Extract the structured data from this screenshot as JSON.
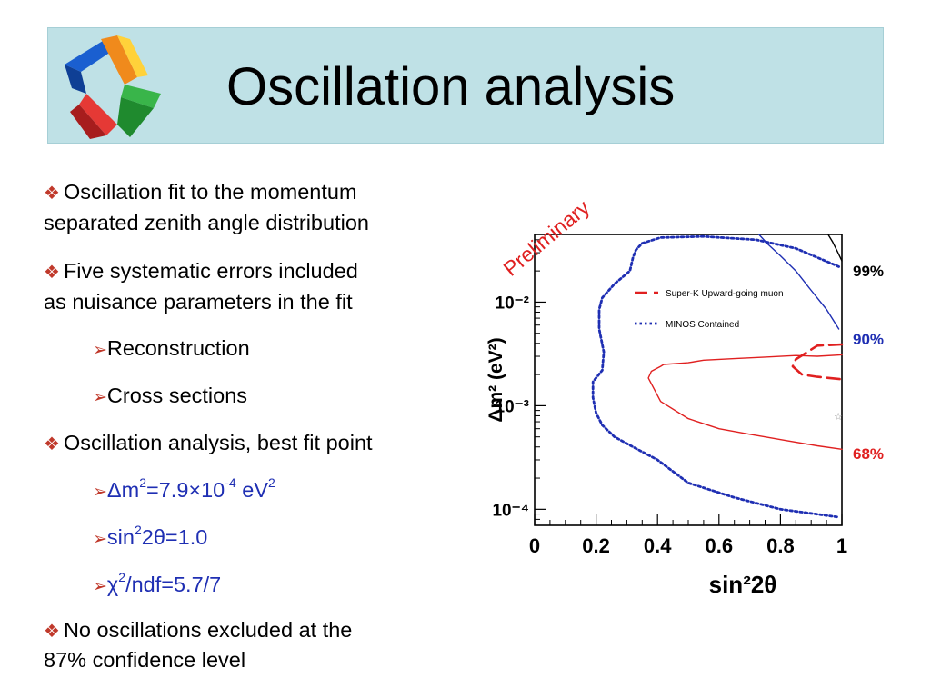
{
  "header": {
    "title": "Oscillation analysis"
  },
  "bullets": {
    "b1_line1": "Oscillation fit to the momentum",
    "b1_line2": "separated zenith angle distribution",
    "b2_line1": "Five systematic errors included",
    "b2_line2": "as nuisance parameters in the fit",
    "sub1": "Reconstruction",
    "sub2": "Cross sections",
    "b3": "Oscillation analysis, best fit point",
    "fit_dm2_prefix": "Δm",
    "fit_dm2_eq": "=7.9×10",
    "fit_dm2_exp": "-4",
    "fit_dm2_unit": " eV",
    "fit_sin_prefix": "sin",
    "fit_sin_mid": "2θ=1.0",
    "fit_chi_prefix": "χ",
    "fit_chi_rest": "/ndf=5.7/7",
    "b4_line1": "No oscillations excluded at the",
    "b4_line2": "87% confidence level"
  },
  "colors": {
    "red": "#e02020",
    "blue": "#1f2fb3",
    "bullet_marker": "#c0392b"
  },
  "chart_data": {
    "type": "line",
    "stamp": "Preliminary",
    "xlabel": "sin²2θ",
    "ylabel": "Δm² (eV²)",
    "xlim": [
      0,
      1
    ],
    "ylim": [
      7e-05,
      0.045
    ],
    "y_scale": "log",
    "x_ticks": [
      "0",
      "0.2",
      "0.4",
      "0.6",
      "0.8",
      "1"
    ],
    "y_ticks": [
      "10⁻²",
      "10⁻³",
      "10⁻⁴"
    ],
    "legend": [
      {
        "label": "Super-K Upward-going muon",
        "style": "dashed",
        "color": "#e02020"
      },
      {
        "label": "MINOS Contained",
        "style": "dotted",
        "color": "#1f2fb3"
      }
    ],
    "contour_labels": [
      {
        "text": "99%",
        "color": "#000000"
      },
      {
        "text": "90%",
        "color": "#1f2fb3"
      },
      {
        "text": "68%",
        "color": "#e02020"
      }
    ],
    "best_fit": {
      "x": 1.0,
      "y": 0.00079
    },
    "series": [
      {
        "name": "Super-K Upward-going muon",
        "style": "dashed",
        "color": "#e02020",
        "x": [
          1.0,
          0.92,
          0.85,
          0.84,
          0.87,
          0.92,
          1.0
        ],
        "y": [
          0.0039,
          0.0038,
          0.0028,
          0.0024,
          0.002,
          0.0019,
          0.0018
        ]
      },
      {
        "name": "MINOS Contained",
        "style": "dotted",
        "color": "#1f2fb3",
        "x": [
          0.99,
          0.85,
          0.72,
          0.55,
          0.41,
          0.35,
          0.33,
          0.32,
          0.31,
          0.26,
          0.22,
          0.21,
          0.21,
          0.225,
          0.22,
          0.19,
          0.19,
          0.2,
          0.22,
          0.26,
          0.32,
          0.4,
          0.5,
          0.65,
          0.8,
          0.99
        ],
        "y": [
          0.022,
          0.033,
          0.04,
          0.043,
          0.042,
          0.037,
          0.032,
          0.027,
          0.02,
          0.015,
          0.011,
          0.0085,
          0.0055,
          0.0033,
          0.0022,
          0.0017,
          0.0012,
          0.00085,
          0.00065,
          0.0005,
          0.0004,
          0.0003,
          0.00018,
          0.00013,
          0.0001,
          8.4e-05
        ]
      },
      {
        "name": "99% contour",
        "style": "solid",
        "color": "#000000",
        "x": [
          0.955,
          0.97,
          0.985,
          1.0
        ],
        "y": [
          0.045,
          0.038,
          0.031,
          0.025
        ]
      },
      {
        "name": "90% contour",
        "style": "solid",
        "color": "#1f2fb3",
        "x": [
          0.73,
          0.76,
          0.8,
          0.85,
          0.9,
          0.95,
          0.99
        ],
        "y": [
          0.045,
          0.036,
          0.028,
          0.02,
          0.013,
          0.0085,
          0.0055
        ]
      },
      {
        "name": "68% contour",
        "style": "solid",
        "color": "#e02020",
        "x": [
          1.0,
          0.92,
          0.82,
          0.75,
          0.7,
          0.6,
          0.5,
          0.41,
          0.37,
          0.38,
          0.41,
          0.42,
          0.5,
          0.55,
          0.65,
          0.75,
          0.85,
          0.92,
          1.0
        ],
        "y": [
          0.00038,
          0.00041,
          0.00046,
          0.0005,
          0.00053,
          0.0006,
          0.00075,
          0.0011,
          0.00185,
          0.00215,
          0.0024,
          0.0025,
          0.0026,
          0.00275,
          0.00285,
          0.00295,
          0.00305,
          0.003,
          0.0031
        ]
      }
    ]
  }
}
